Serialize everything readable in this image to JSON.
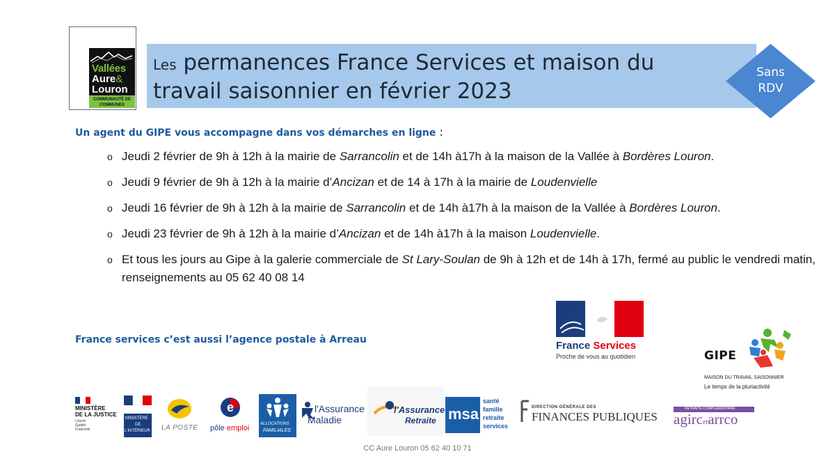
{
  "logo": {
    "line1": "Vallées",
    "line2a": "Aure",
    "line2b": "&",
    "line3": "Louron",
    "band": "COMMUNAUTÉ DE COMMUNES"
  },
  "title": {
    "prefix": "Les",
    "main_line1": " permanences France Services et maison du",
    "main_line2": "travail saisonnier en février  2023"
  },
  "badge": {
    "line1": "Sans",
    "line2": "RDV"
  },
  "intro": {
    "text": "Un agent du GIPE vous accompagne dans vos démarches en ligne",
    "colon": " :"
  },
  "items": [
    {
      "bullet": "o",
      "p1": "Jeudi 2 février de 9h à 12h à la mairie de ",
      "i1": "Sarrancolin",
      "p2": " et de 14h à17h à la maison de la Vallée à ",
      "i2": "Bordères Louron",
      "p3": "."
    },
    {
      "bullet": "o",
      "p1": "Jeudi 9 février de 9h à 12h à la mairie d’",
      "i1": "Ancizan",
      "p2": " et de 14 à 17h à la mairie de ",
      "i2": "Loudenvielle",
      "p3": ""
    },
    {
      "bullet": "o",
      "p1": "Jeudi 16 février de 9h à 12h à la mairie de ",
      "i1": "Sarrancolin",
      "p2": " et de 14h à17h à la maison de la Vallée à ",
      "i2": "Bordères Louron",
      "p3": "."
    },
    {
      "bullet": "o",
      "p1": "Jeudi 23 février de 9h à 12h à la mairie d’",
      "i1": "Ancizan",
      "p2": " et de 14h à17h à la maison ",
      "i2": "Loudenvielle",
      "p3": "."
    },
    {
      "bullet": "o",
      "p1": "Et tous les jours  au Gipe à la galerie commerciale de ",
      "i1": "St Lary-Soulan",
      "p2": " de 9h à 12h et de 14h à 17h, fermé au public le vendredi matin, renseignements au 05 62 40 08 14",
      "i2": "",
      "p3": ""
    }
  ],
  "postale": "France services c’est aussi l’agence postale à Arreau",
  "france_services": {
    "brand_a": "France",
    "brand_b": " Services",
    "tagline": "Proche de vous au quotidien"
  },
  "gipe": {
    "word": "GIPE",
    "line1": "MAISON DU TRAVAIL SAISONNIER",
    "line2": "Le temps de la pluriactivité"
  },
  "partners": {
    "justice": {
      "l1": "MINISTÈRE",
      "l2": "DE LA JUSTICE",
      "l3": "Liberté",
      "l4": "Égalité",
      "l5": "Fraternité"
    },
    "interieur": {
      "l1": "MINISTÈRE",
      "l2": "DE",
      "l3": "L'INTÉRIEUR"
    },
    "laposte": "LA POSTE",
    "pole_emploi": {
      "a": "pôle",
      "b": " emploi"
    },
    "caf": {
      "l1": "ALLOCATIONS",
      "l2": "FAMILIALES"
    },
    "assurance_maladie": {
      "l1": "l'Assurance",
      "l2": "Maladie"
    },
    "assurance_retraite": {
      "l1": "l'Assurance",
      "l2": "Retraite"
    },
    "msa": {
      "logo": "msa",
      "l1": "santé",
      "l2": "famille",
      "l3": "retraite",
      "l4": "services"
    },
    "dgfip": {
      "l1": "DIRECTION GÉNÉRALE DES",
      "l2": "FINANCES PUBLIQUES"
    },
    "agirc": {
      "band": "RETRAITE COMPLÉMENTAIRE",
      "a": "agirc",
      "b": "et",
      "c": "arrco"
    }
  },
  "footer": "CC Aure Louron  05 62 40 10 71",
  "colors": {
    "banner": "#a6c8ea",
    "diamond": "#4a86d1",
    "accent_blue": "#1d5a9e",
    "logo_green": "#7cc142"
  }
}
